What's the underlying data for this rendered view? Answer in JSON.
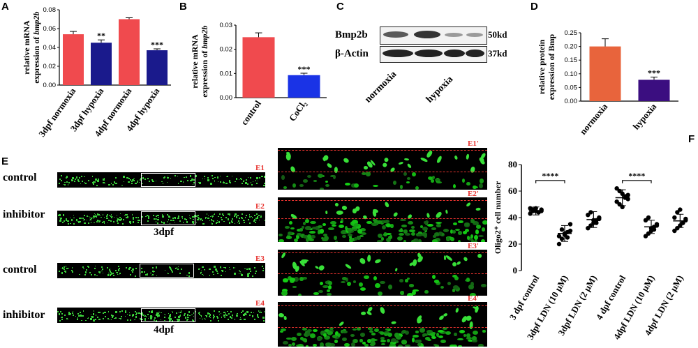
{
  "panels": {
    "A": "A",
    "B": "B",
    "C": "C",
    "D": "D",
    "E": "E",
    "F": "F"
  },
  "chart_data": [
    {
      "id": "A",
      "type": "bar",
      "ylabel_lines": [
        "relative mRNA",
        "expression of "
      ],
      "ylabel_italic": "bmp2b",
      "categories": [
        "3dpf normoxia",
        "3dpf hypoxia",
        "4dpf normoxia",
        "4dpf hypoxia"
      ],
      "values": [
        0.054,
        0.045,
        0.07,
        0.037
      ],
      "errors": [
        0.003,
        0.003,
        0.0015,
        0.0015
      ],
      "colors": [
        "#f04a4e",
        "#1a1a8c",
        "#f04a4e",
        "#1a1a8c"
      ],
      "significance": [
        "",
        "**",
        "",
        "***"
      ],
      "yticks": [
        "0.00",
        "0.02",
        "0.04",
        "0.06",
        "0.08"
      ],
      "ylim": [
        0,
        0.08
      ]
    },
    {
      "id": "B",
      "type": "bar",
      "ylabel_lines": [
        "relative mRNA",
        "expression of "
      ],
      "ylabel_italic": "bmp2b",
      "categories": [
        "control",
        "CoCl₂"
      ],
      "values": [
        0.025,
        0.0093
      ],
      "errors": [
        0.0018,
        0.0008
      ],
      "colors": [
        "#f04a4e",
        "#1a33e6"
      ],
      "significance": [
        "",
        "***"
      ],
      "yticks": [
        "0.00",
        "0.01",
        "0.02",
        "0.03"
      ],
      "ylim": [
        0,
        0.03
      ]
    },
    {
      "id": "D",
      "type": "bar",
      "ylabel_lines": [
        "relative protein",
        "expression of Bmp"
      ],
      "ylabel_italic": "",
      "categories": [
        "normoxia",
        "hypoxia"
      ],
      "values": [
        0.2,
        0.078
      ],
      "errors": [
        0.028,
        0.01
      ],
      "colors": [
        "#e8643c",
        "#3b0e80"
      ],
      "significance": [
        "",
        "***"
      ],
      "yticks": [
        "0.00",
        "0.05",
        "0.10",
        "0.15",
        "0.20",
        "0.25"
      ],
      "ylim": [
        0,
        0.25
      ]
    },
    {
      "id": "F",
      "type": "scatter",
      "ylabel": "Oligo2⁺ cell number",
      "categories": [
        "3 dpf control",
        "3dpf LDN (10 μM)",
        "3dpf LDN (2 μM)",
        "4 dpf control",
        "4dpf LDN (10 μM)",
        "4dpf LDN (2 μM)"
      ],
      "means": [
        45,
        28,
        38.5,
        55,
        33,
        37.5
      ],
      "sds": [
        3,
        6,
        6,
        6,
        5,
        5
      ],
      "points": [
        [
          47,
          46,
          45,
          44,
          46,
          43,
          45,
          47,
          44,
          45
        ],
        [
          20,
          24,
          27,
          29,
          35,
          26,
          31,
          28,
          25,
          30
        ],
        [
          32,
          34,
          36,
          38,
          40,
          42,
          44,
          38,
          36,
          39
        ],
        [
          62,
          60,
          58,
          56,
          54,
          52,
          50,
          48,
          55,
          57
        ],
        [
          26,
          28,
          30,
          33,
          35,
          38,
          40,
          32,
          31,
          34
        ],
        [
          30,
          32,
          34,
          36,
          38,
          40,
          44,
          46,
          36,
          39
        ]
      ],
      "yticks": [
        "0",
        "20",
        "40",
        "60",
        "80"
      ],
      "ylim": [
        0,
        80
      ],
      "significance": [
        {
          "from": 0,
          "to": 1,
          "label": "****"
        },
        {
          "from": 3,
          "to": 4,
          "label": "****"
        }
      ]
    }
  ],
  "blot": {
    "rows": [
      {
        "label": "Bmp2b",
        "size": "50kd"
      },
      {
        "label": "β-Actin",
        "size": "37kd"
      }
    ],
    "lanes": [
      "normoxia",
      "hypoxia"
    ]
  },
  "imaging": {
    "rows": [
      {
        "label": "control",
        "id": "E1",
        "zoom_id": "E1'"
      },
      {
        "label": "inhibitor",
        "id": "E2",
        "zoom_id": "E2'"
      },
      {
        "label": "control",
        "id": "E3",
        "zoom_id": "E3'"
      },
      {
        "label": "inhibitor",
        "id": "E4",
        "zoom_id": "E4'"
      }
    ],
    "age_labels": [
      "3dpf",
      "4dpf"
    ]
  }
}
